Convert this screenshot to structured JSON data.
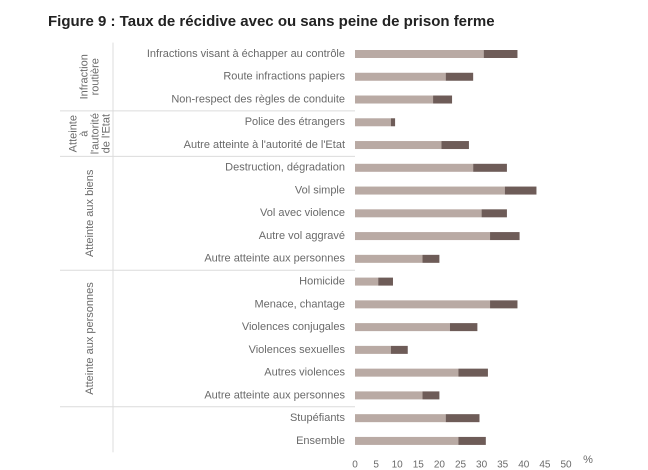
{
  "chart_data": {
    "type": "bar",
    "orientation": "horizontal",
    "stacked": true,
    "title": "Figure 9 : Taux de récidive avec ou sans peine de prison ferme",
    "xlabel": "%",
    "categories": [
      "Infractions visant à échapper au contrôle",
      "Route infractions papiers",
      "Non-respect des règles de conduite",
      "Police des étrangers",
      "Autre atteinte à l'autorité de l'Etat",
      "Destruction, dégradation",
      "Vol simple",
      "Vol avec violence",
      "Autre vol aggravé",
      "Autre atteinte aux personnes",
      "Homicide",
      "Menace, chantage",
      "Violences conjugales",
      "Violences sexuelles",
      "Autres violences",
      "Autre atteinte aux personnes",
      "Stupéfiants",
      "Ensemble"
    ],
    "groups": [
      [
        "Infraction",
        "routière"
      ],
      [
        "Atteinte",
        "à",
        "l'autorité",
        "de l'Etat"
      ],
      [
        "Atteinte aux biens"
      ],
      [
        "Atteinte aux personnes"
      ]
    ],
    "series": [
      {
        "color": "#b9aaa4",
        "values": [
          30.5,
          21.5,
          18.5,
          8.5,
          20.5,
          28,
          35.5,
          30,
          32,
          16,
          5.5,
          32,
          22.5,
          8.5,
          24.5,
          16,
          21.5,
          24.5
        ]
      },
      {
        "color": "#6e5c58",
        "values": [
          8,
          6.5,
          4.5,
          1,
          6.5,
          8,
          7.5,
          6,
          7,
          4,
          3.5,
          6.5,
          6.5,
          4,
          7,
          4,
          8,
          6.5
        ]
      }
    ],
    "xlim": [
      0,
      50
    ],
    "xticks": [
      0,
      5,
      10,
      15,
      20,
      25,
      30,
      35,
      40,
      45,
      50
    ]
  }
}
